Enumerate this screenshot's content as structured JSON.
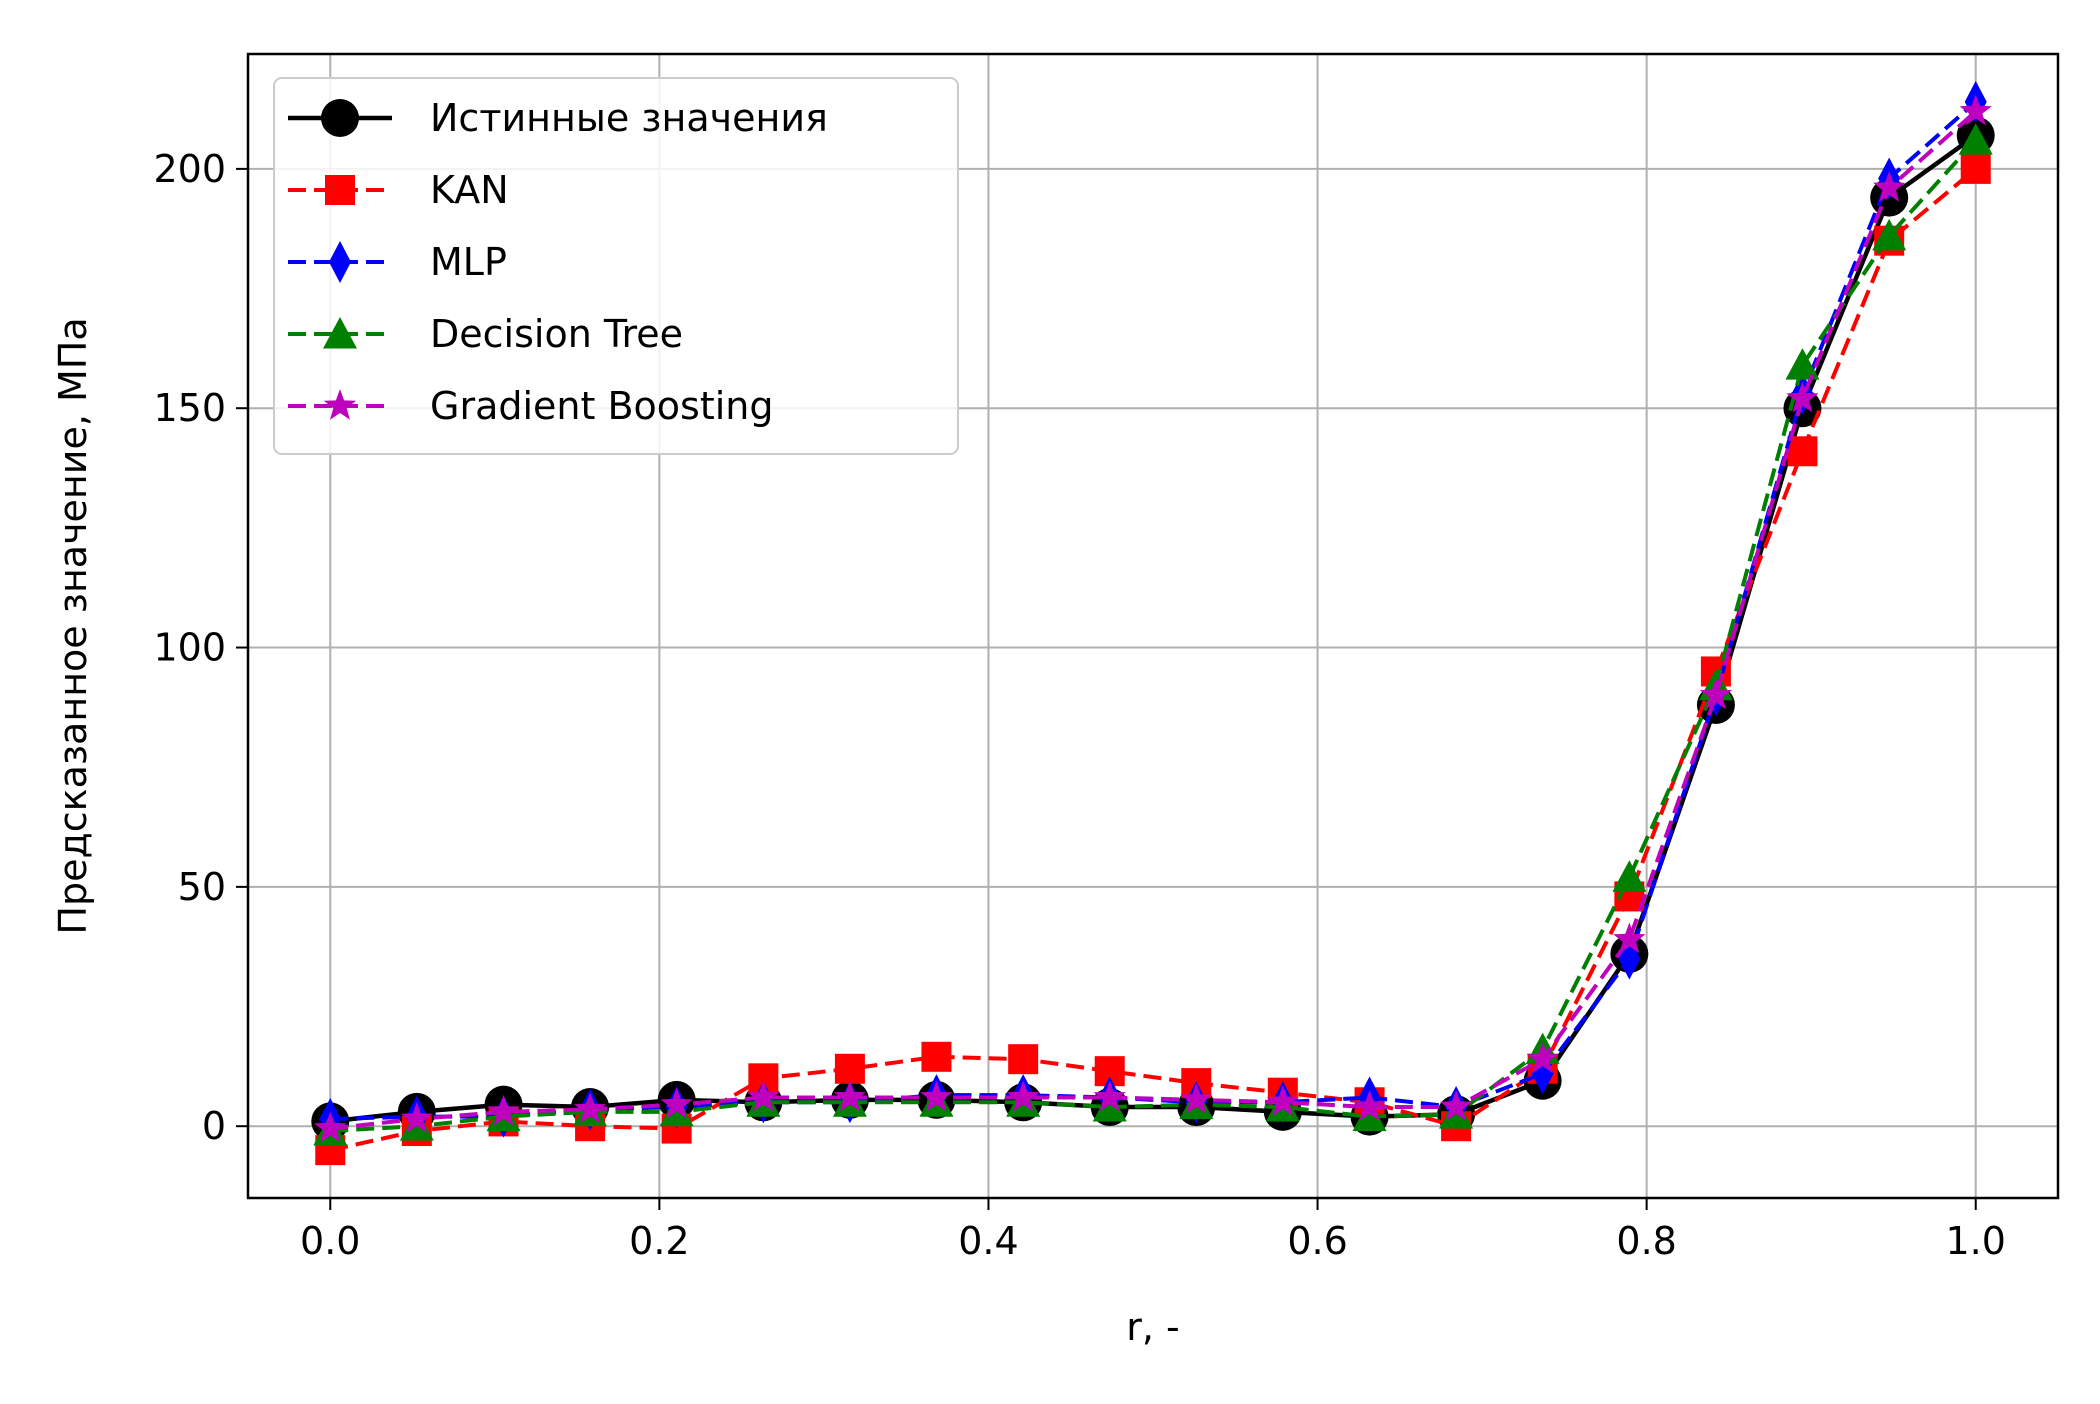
{
  "chart_data": {
    "type": "line",
    "title": "",
    "xlabel": "r, -",
    "ylabel": "Предсказанное значение, МПа",
    "xlim": [
      -0.05,
      1.05
    ],
    "ylim": [
      -15,
      224
    ],
    "xticks": [
      0.0,
      0.2,
      0.4,
      0.6,
      0.8,
      1.0
    ],
    "xtick_labels": [
      "0.0",
      "0.2",
      "0.4",
      "0.6",
      "0.8",
      "1.0"
    ],
    "yticks": [
      0,
      50,
      100,
      150,
      200
    ],
    "ytick_labels": [
      "0",
      "50",
      "100",
      "150",
      "200"
    ],
    "grid": true,
    "legend_position": "upper-left",
    "x": [
      0.0,
      0.0526,
      0.1053,
      0.1579,
      0.2105,
      0.2632,
      0.3158,
      0.3684,
      0.4211,
      0.4737,
      0.5263,
      0.5789,
      0.6316,
      0.6842,
      0.7368,
      0.7895,
      0.8421,
      0.8947,
      0.9474,
      1.0
    ],
    "series": [
      {
        "name": "Истинные значения",
        "color": "#000000",
        "linestyle": "solid",
        "marker": "circle",
        "values": [
          1,
          3,
          4.5,
          4,
          5.5,
          5,
          5.5,
          5.5,
          5,
          4,
          4,
          3,
          2,
          2.5,
          9.5,
          36,
          88,
          150,
          194,
          207
        ]
      },
      {
        "name": "KAN",
        "color": "#ff0000",
        "linestyle": "dashed",
        "marker": "square",
        "values": [
          -5,
          -1,
          1,
          0,
          -0.5,
          10,
          12,
          14.5,
          14,
          11.5,
          9,
          7,
          5,
          0,
          12,
          48,
          95,
          141,
          185,
          200
        ]
      },
      {
        "name": "MLP",
        "color": "#0000ff",
        "linestyle": "dashed",
        "marker": "thin_diamond",
        "values": [
          1.5,
          2,
          2,
          3.5,
          4,
          5,
          5,
          6.5,
          6.5,
          6,
          5,
          5,
          6,
          4,
          11,
          35,
          90,
          153,
          198,
          214
        ]
      },
      {
        "name": "Decision Tree",
        "color": "#008000",
        "linestyle": "dashed",
        "marker": "triangle",
        "values": [
          -1,
          0,
          2,
          3,
          3,
          5,
          5,
          5,
          5,
          4,
          4.5,
          4,
          2,
          2.5,
          16,
          52,
          92,
          159,
          186,
          206
        ]
      },
      {
        "name": "Gradient Boosting",
        "color": "#bf00bf",
        "linestyle": "dashed",
        "marker": "star",
        "values": [
          -0.5,
          1.5,
          3,
          3.5,
          4.5,
          6,
          6,
          6,
          6,
          6,
          5.5,
          5,
          4,
          4,
          14,
          39,
          90,
          152,
          196,
          212
        ]
      }
    ]
  }
}
